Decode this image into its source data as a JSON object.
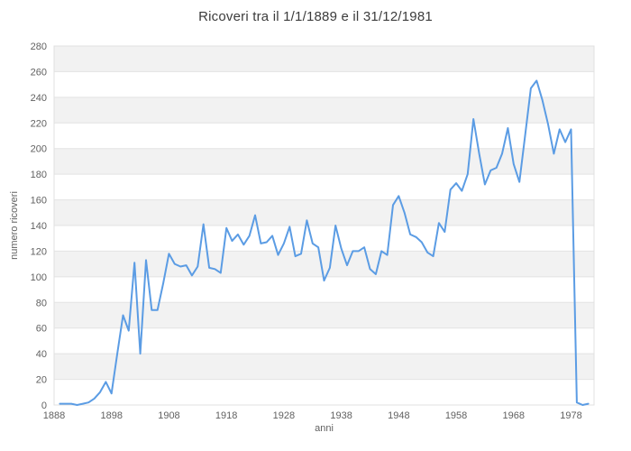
{
  "title": "Ricoveri tra il 1/1/1889 e il 31/12/1981",
  "chart_data": {
    "type": "line",
    "title": "Ricoveri tra il 1/1/1889 e il 31/12/1981",
    "xlabel": "anni",
    "ylabel": "numero ricoveri",
    "xlim": [
      1888,
      1982
    ],
    "ylim": [
      0,
      280
    ],
    "x_ticks": [
      1888,
      1898,
      1908,
      1918,
      1928,
      1938,
      1948,
      1958,
      1968,
      1978
    ],
    "y_ticks": [
      0,
      20,
      40,
      60,
      80,
      100,
      120,
      140,
      160,
      180,
      200,
      220,
      240,
      260,
      280
    ],
    "grid": "horizontal-bands",
    "legend": "none",
    "colors": {
      "line": "#5b9ce4",
      "band": "#f2f2f2",
      "gridline": "#e3e3e3",
      "plot_border": "#e0e0e0",
      "tick_text": "#616161",
      "title_text": "#3c3c3c",
      "background": "#ffffff"
    },
    "series": [
      {
        "name": "numero ricoveri",
        "x": [
          1889,
          1890,
          1891,
          1892,
          1893,
          1894,
          1895,
          1896,
          1897,
          1898,
          1899,
          1900,
          1901,
          1902,
          1903,
          1904,
          1905,
          1906,
          1907,
          1908,
          1909,
          1910,
          1911,
          1912,
          1913,
          1914,
          1915,
          1916,
          1917,
          1918,
          1919,
          1920,
          1921,
          1922,
          1923,
          1924,
          1925,
          1926,
          1927,
          1928,
          1929,
          1930,
          1931,
          1932,
          1933,
          1934,
          1935,
          1936,
          1937,
          1938,
          1939,
          1940,
          1941,
          1942,
          1943,
          1944,
          1945,
          1946,
          1947,
          1948,
          1949,
          1950,
          1951,
          1952,
          1953,
          1954,
          1955,
          1956,
          1957,
          1958,
          1959,
          1960,
          1961,
          1962,
          1963,
          1964,
          1965,
          1966,
          1967,
          1968,
          1969,
          1970,
          1971,
          1972,
          1973,
          1974,
          1975,
          1976,
          1977,
          1978,
          1979,
          1980,
          1981
        ],
        "values": [
          1,
          1,
          1,
          0,
          1,
          2,
          5,
          10,
          18,
          9,
          40,
          70,
          58,
          111,
          40,
          113,
          74,
          74,
          95,
          118,
          110,
          108,
          109,
          101,
          108,
          141,
          107,
          106,
          103,
          138,
          128,
          133,
          125,
          132,
          148,
          126,
          127,
          132,
          117,
          126,
          139,
          116,
          118,
          144,
          126,
          123,
          97,
          107,
          140,
          122,
          109,
          120,
          120,
          123,
          106,
          102,
          120,
          117,
          156,
          163,
          150,
          133,
          131,
          127,
          119,
          116,
          142,
          135,
          168,
          173,
          167,
          180,
          223,
          196,
          172,
          183,
          185,
          196,
          216,
          188,
          174,
          210,
          247,
          253,
          238,
          219,
          196,
          215,
          205,
          215,
          2,
          0,
          1
        ]
      }
    ]
  }
}
